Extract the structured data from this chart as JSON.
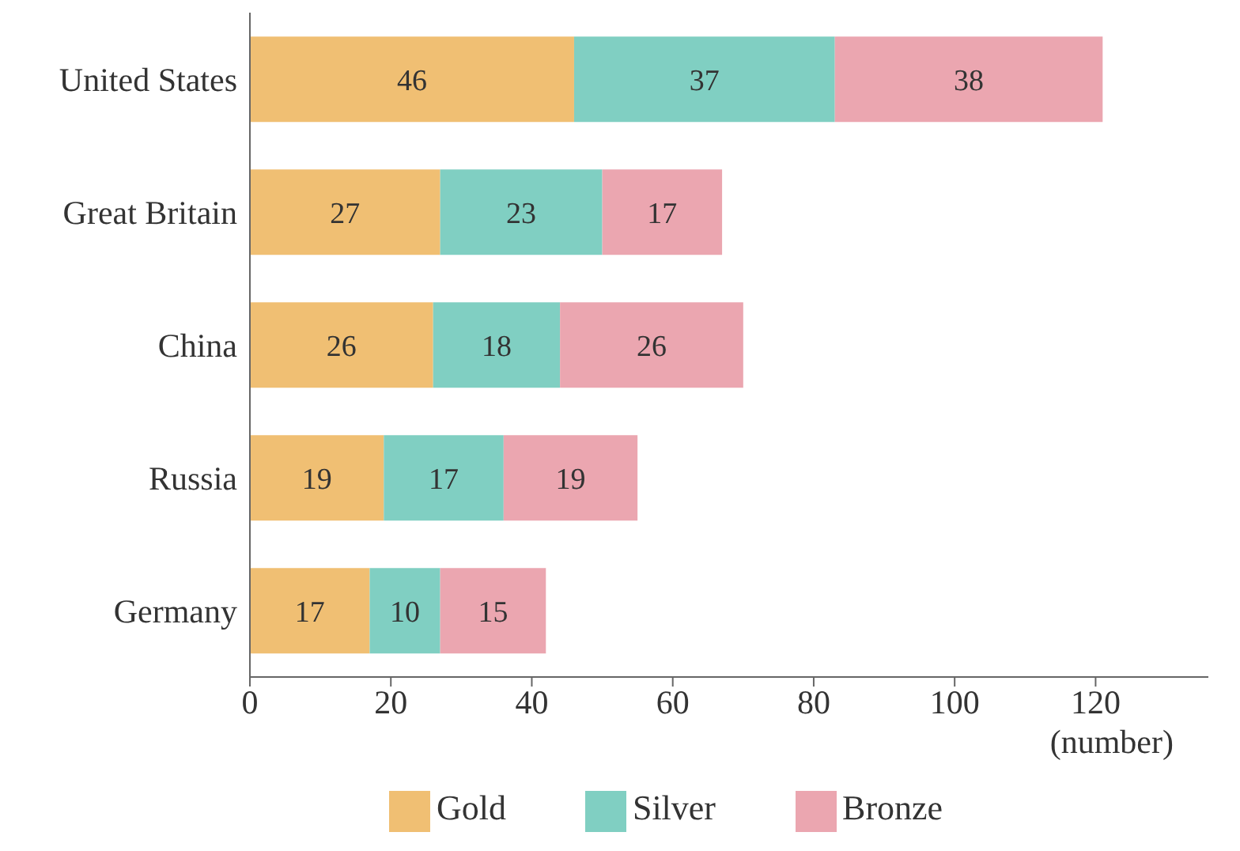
{
  "chart_data": {
    "type": "bar",
    "orientation": "horizontal",
    "stacked": true,
    "categories": [
      "United States",
      "Great Britain",
      "China",
      "Russia",
      "Germany"
    ],
    "series": [
      {
        "name": "Gold",
        "color": "#f0bf73",
        "values": [
          46,
          27,
          26,
          19,
          17
        ]
      },
      {
        "name": "Silver",
        "color": "#80cfc2",
        "values": [
          37,
          23,
          18,
          17,
          10
        ]
      },
      {
        "name": "Bronze",
        "color": "#eba6b0",
        "values": [
          38,
          17,
          26,
          19,
          15
        ]
      }
    ],
    "xlabel": "(number)",
    "xlim": [
      0,
      136
    ],
    "xticks": [
      0,
      20,
      40,
      60,
      80,
      100,
      120
    ],
    "data_labels": true,
    "legend": "bottom",
    "grid": false
  }
}
